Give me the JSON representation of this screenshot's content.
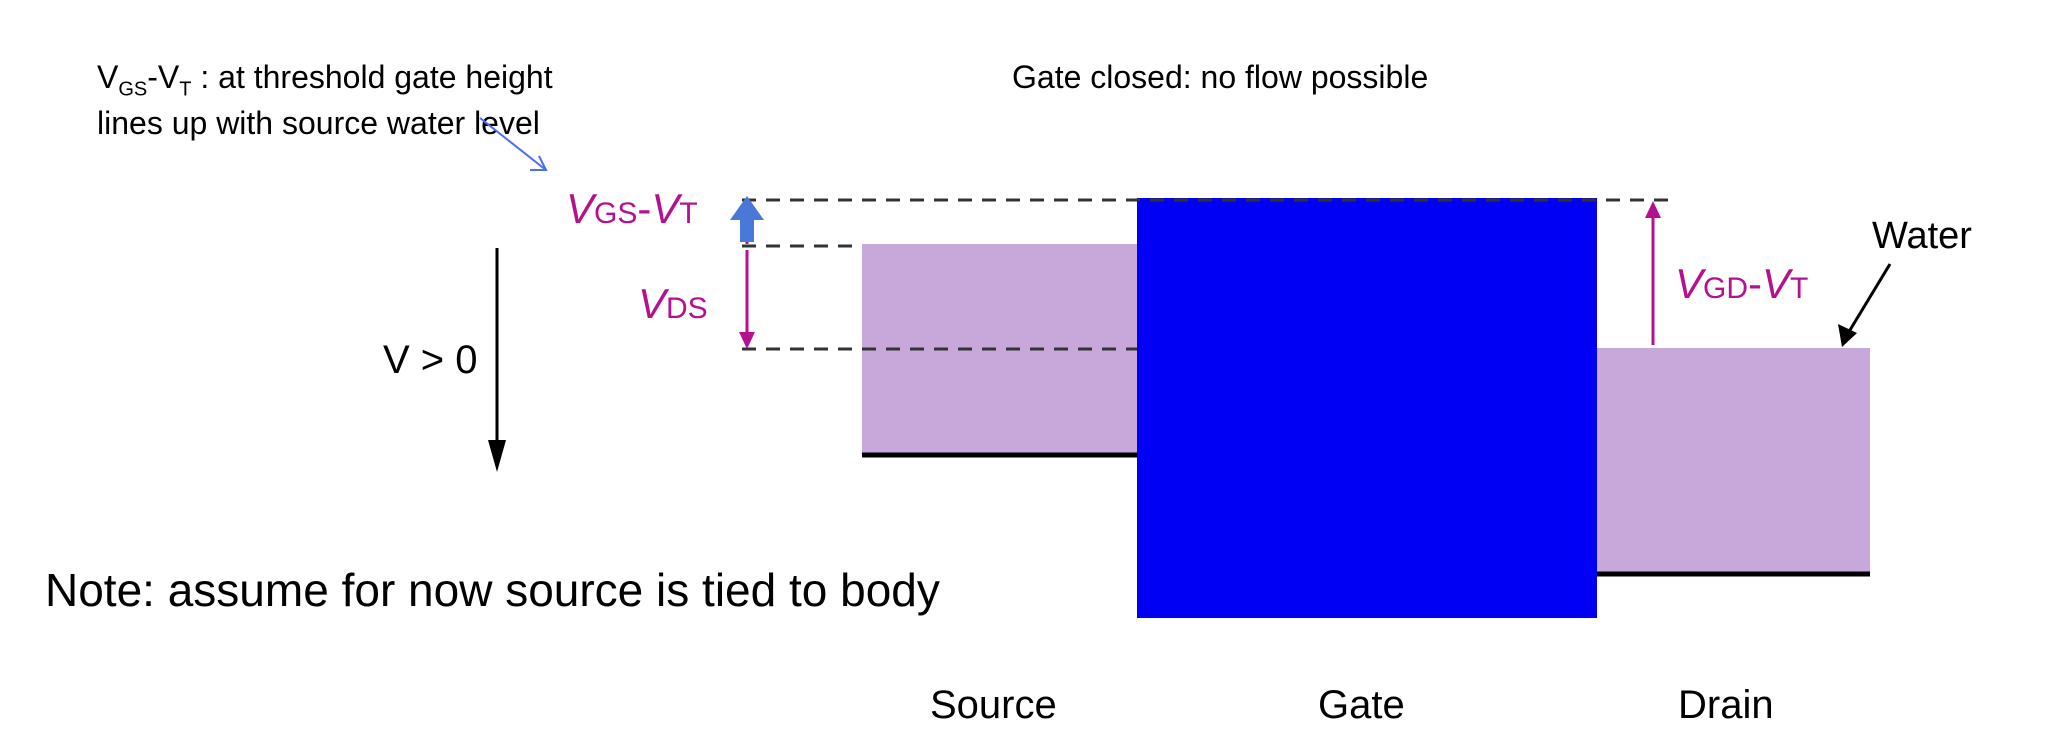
{
  "annotation": {
    "label_main": "V",
    "sub_gs": "GS",
    "dash": "-",
    "label_t": "V",
    "sub_t": "T",
    "text": " : at threshold gate height lines up with source water level"
  },
  "header": "Gate closed: no flow possible",
  "note": "Note: assume for now source is tied to body",
  "diagram": {
    "labels": {
      "vgs_v": "V",
      "vgs_sub": "GS",
      "vgs_dash": "-",
      "vgs_v2": "V",
      "vgs_sub2": "T",
      "vds_v": "V",
      "vds_sub": "DS",
      "vgd_v": "V",
      "vgd_sub": "GD",
      "vgd_dash": "-",
      "vgd_v2": "V",
      "vgd_sub2": "T",
      "vpos": "V > 0",
      "water": "Water",
      "source": "Source",
      "gate": "Gate",
      "drain": "Drain"
    },
    "colors": {
      "water": "#c8a8da",
      "gate": "#0000f5",
      "magenta": "#b5108f",
      "blue_arrow": "#4a78d8"
    }
  }
}
